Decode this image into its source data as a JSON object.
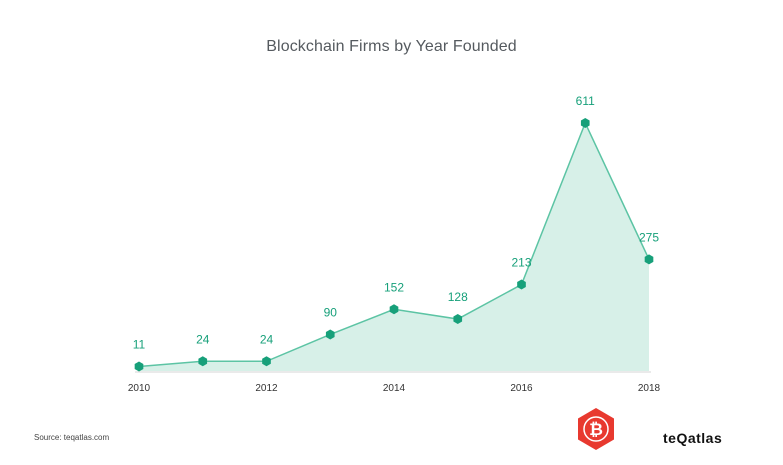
{
  "chart_data": {
    "type": "area",
    "title": "Blockchain Firms by Year Founded",
    "x": [
      2010,
      2011,
      2012,
      2013,
      2014,
      2015,
      2016,
      2017,
      2018
    ],
    "values": [
      11,
      24,
      24,
      90,
      152,
      128,
      213,
      611,
      275
    ],
    "x_tick_labels": [
      "2010",
      "2012",
      "2014",
      "2016",
      "2018"
    ],
    "data_labels": [
      "11",
      "24",
      "24",
      "90",
      "152",
      "128",
      "213",
      "611",
      "275"
    ],
    "xlabel": "",
    "ylabel": "",
    "ylim": [
      0,
      640
    ],
    "grid": false,
    "legend": "none",
    "colors": {
      "line": "#5cc4a4",
      "fill": "#d7f0e8",
      "marker": "#17a07a",
      "label": "#17a07a",
      "axis": "#d5d5d5"
    }
  },
  "footer": {
    "source": "Source: teqatlas.com",
    "brand": "teQatlas"
  },
  "logo": {
    "icon": "bitcoin-icon",
    "glyph": "₿",
    "color": "#e8392f"
  }
}
